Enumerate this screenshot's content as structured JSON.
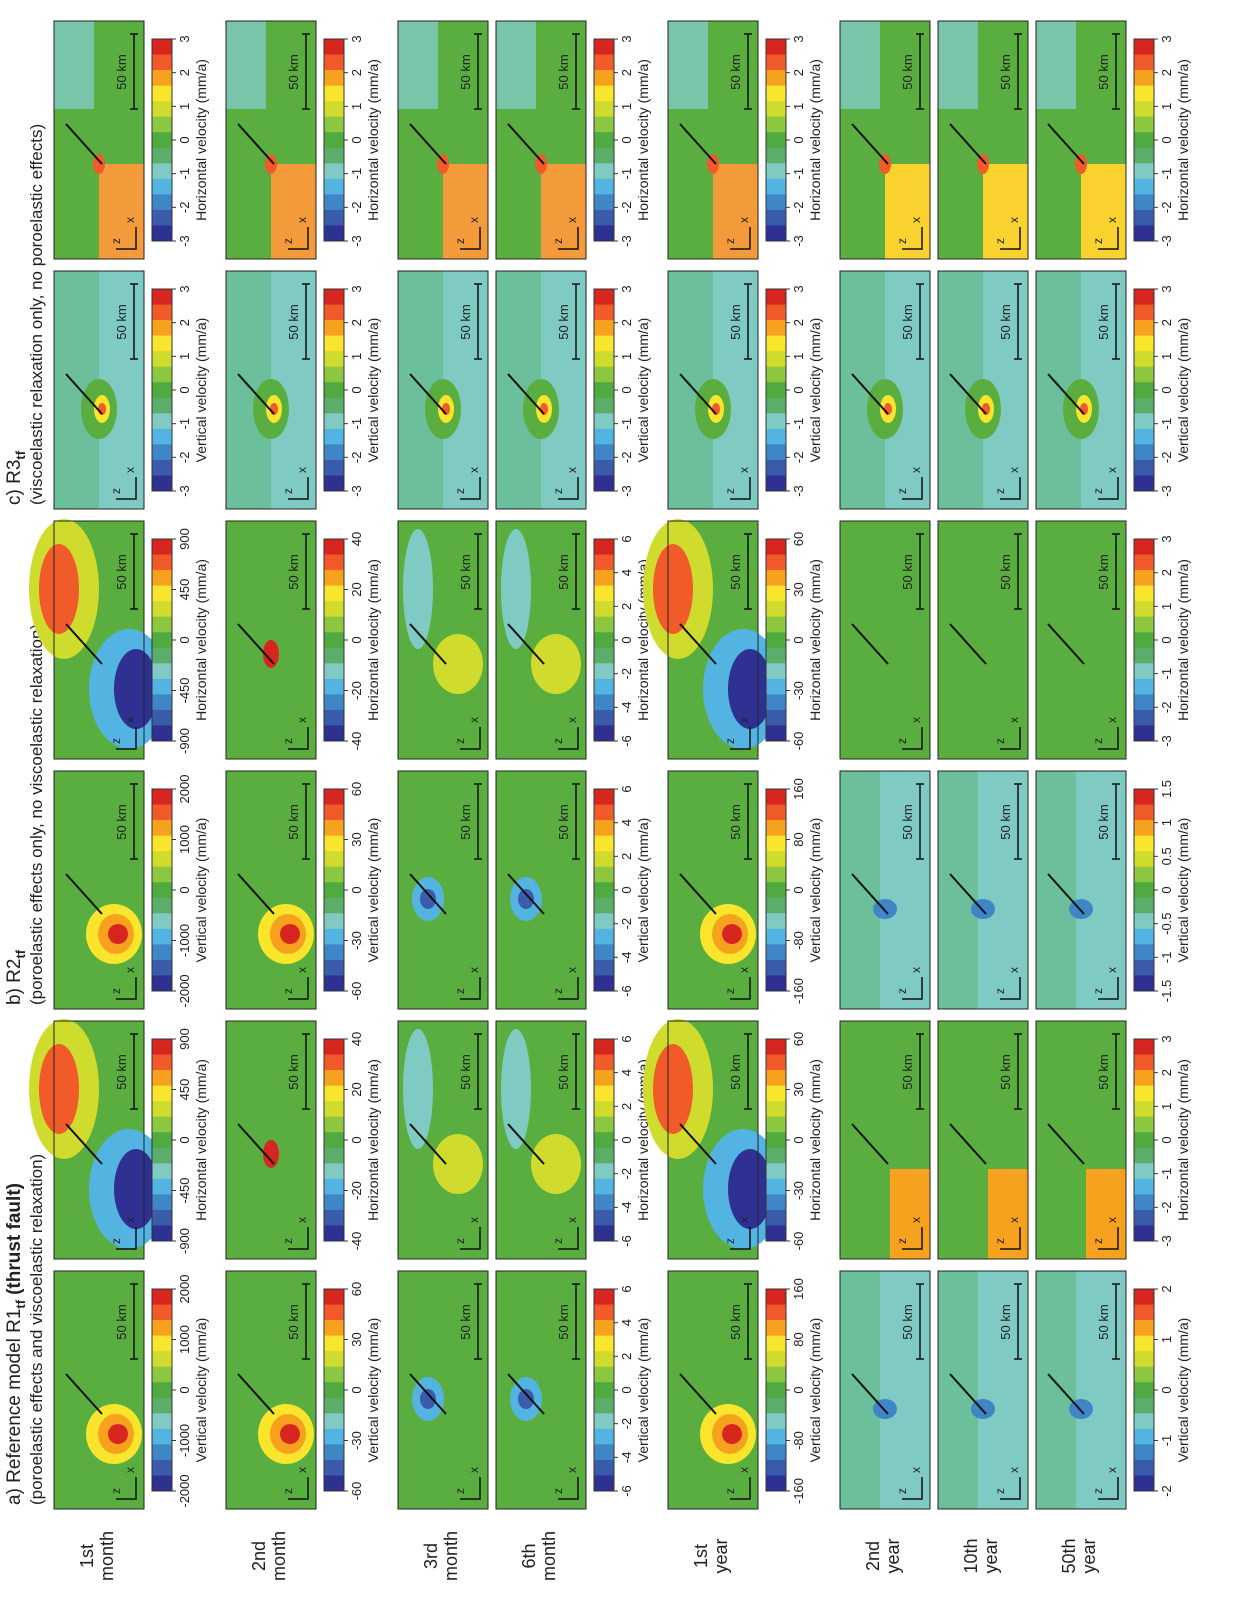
{
  "headers": [
    {
      "prefix": "a) Reference model R1",
      "subscript": "tf",
      "suffix": "(thrust fault)",
      "subtitle": "(poroelastic effects and viscoelastic relaxation)"
    },
    {
      "prefix": "b) R2",
      "subscript": "tf",
      "subtitle": "(poroelastic effects only, no viscoelastic relaxation)"
    },
    {
      "prefix": "c) R3",
      "subscript": "tf",
      "subtitle": "(viscoelastic relaxation only, no poroelastic effects)"
    }
  ],
  "columns": [
    {
      "quantity": "Vertical velocity (mm/a)"
    },
    {
      "quantity": "Horizontal velocity (mm/a)"
    },
    {
      "quantity": "Vertical velocity (mm/a)"
    },
    {
      "quantity": "Horizontal velocity (mm/a)"
    },
    {
      "quantity": "Vertical velocity (mm/a)"
    },
    {
      "quantity": "Horizontal velocity (mm/a)"
    }
  ],
  "panel_text": {
    "z": "z",
    "x": "x",
    "scale": "50 km"
  },
  "groups": [
    {
      "rows": [
        [
          "1st",
          "month"
        ]
      ],
      "colorbars": [
        [
          -2000,
          -1000,
          0,
          1000,
          2000
        ],
        [
          -900,
          -450,
          0,
          450,
          900
        ],
        [
          -2000,
          -1000,
          0,
          1000,
          2000
        ],
        [
          -900,
          -450,
          0,
          450,
          900
        ],
        [
          -3,
          -2,
          -1,
          0,
          1,
          2,
          3
        ],
        [
          -3,
          -2,
          -1,
          0,
          1,
          2,
          3
        ]
      ]
    },
    {
      "rows": [
        [
          "2nd",
          "month"
        ]
      ],
      "colorbars": [
        [
          -60,
          -30,
          0,
          30,
          60
        ],
        [
          -40,
          -20,
          0,
          20,
          40
        ],
        [
          -60,
          -30,
          0,
          30,
          60
        ],
        [
          -40,
          -20,
          0,
          20,
          40
        ],
        [
          -3,
          -2,
          -1,
          0,
          1,
          2,
          3
        ],
        [
          -3,
          -2,
          -1,
          0,
          1,
          2,
          3
        ]
      ]
    },
    {
      "rows": [
        [
          "3rd",
          "month"
        ],
        [
          "6th",
          "month"
        ]
      ],
      "colorbars": [
        [
          -6,
          -4,
          -2,
          0,
          2,
          4,
          6
        ],
        [
          -6,
          -4,
          -2,
          0,
          2,
          4,
          6
        ],
        [
          -6,
          -4,
          -2,
          0,
          2,
          4,
          6
        ],
        [
          -6,
          -4,
          -2,
          0,
          2,
          4,
          6
        ],
        [
          -3,
          -2,
          -1,
          0,
          1,
          2,
          3
        ],
        [
          -3,
          -2,
          -1,
          0,
          1,
          2,
          3
        ]
      ]
    },
    {
      "rows": [
        [
          "1st",
          "year"
        ]
      ],
      "colorbars": [
        [
          -160,
          -80,
          0,
          80,
          160
        ],
        [
          -60,
          -30,
          0,
          30,
          60
        ],
        [
          -160,
          -80,
          0,
          80,
          160
        ],
        [
          -60,
          -30,
          0,
          30,
          60
        ],
        [
          -3,
          -2,
          -1,
          0,
          1,
          2,
          3
        ],
        [
          -3,
          -2,
          -1,
          0,
          1,
          2,
          3
        ]
      ]
    },
    {
      "rows": [
        [
          "2nd",
          "year"
        ],
        [
          "10th",
          "year"
        ],
        [
          "50th",
          "year"
        ]
      ],
      "colorbars": [
        [
          -2,
          -1,
          0,
          1,
          2
        ],
        [
          -3,
          -2,
          -1,
          0,
          1,
          2,
          3
        ],
        [
          -1.5,
          -1,
          -0.5,
          0,
          0.5,
          1,
          1.5
        ],
        [
          -3,
          -2,
          -1,
          0,
          1,
          2,
          3
        ],
        [
          -3,
          -2,
          -1,
          0,
          1,
          2,
          3
        ],
        [
          -3,
          -2,
          -1,
          0,
          1,
          2,
          3
        ]
      ]
    }
  ]
}
